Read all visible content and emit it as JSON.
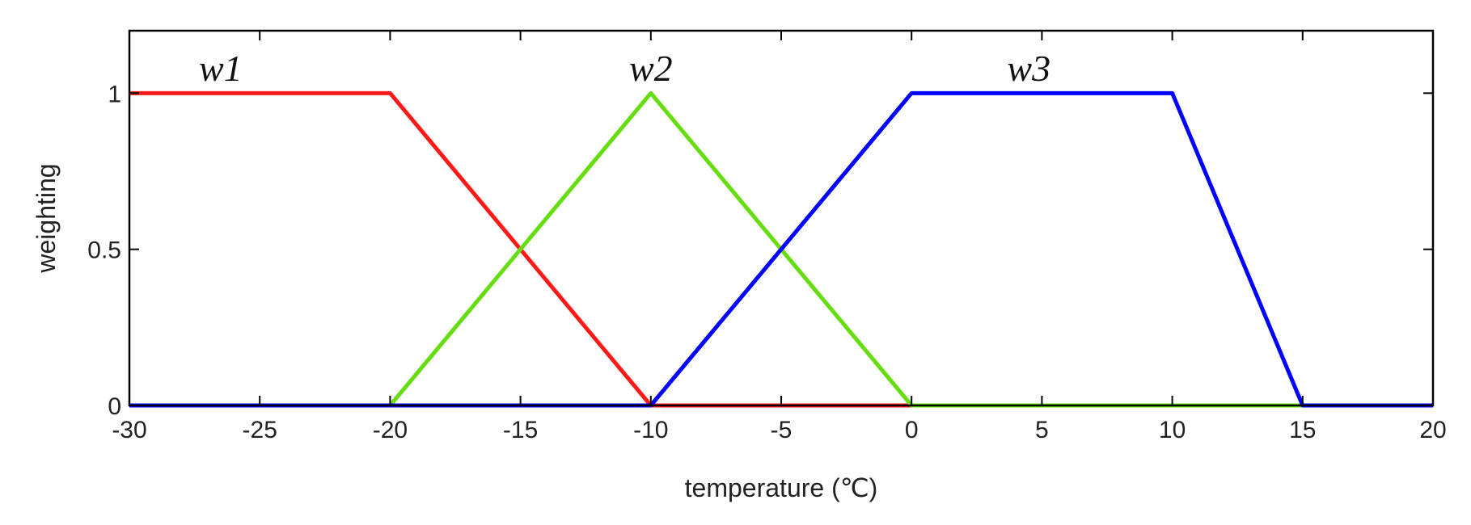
{
  "chart_data": {
    "type": "line",
    "title": "",
    "xlabel": "temperature (℃)",
    "ylabel": "weighting",
    "xlim": [
      -30,
      20
    ],
    "ylim": [
      0,
      1.2
    ],
    "xticks": [
      -30,
      -25,
      -20,
      -15,
      -10,
      -5,
      0,
      5,
      10,
      15,
      20
    ],
    "yticks": [
      0,
      0.5,
      1
    ],
    "xtick_labels": [
      "-30",
      "-25",
      "-20",
      "-15",
      "-10",
      "-5",
      "0",
      "5",
      "10",
      "15",
      "20"
    ],
    "ytick_labels": [
      "0",
      "0.5",
      "1"
    ],
    "grid": false,
    "series": [
      {
        "name": "w1",
        "color": "#ff1a1a",
        "x": [
          -30,
          -20,
          -10,
          0
        ],
        "y": [
          1,
          1,
          0,
          0
        ],
        "label_at": [
          -26.5,
          1.04
        ]
      },
      {
        "name": "w2",
        "color": "#66dd11",
        "x": [
          -30,
          -20,
          -10,
          0,
          15
        ],
        "y": [
          0,
          0,
          1,
          0,
          0
        ],
        "label_at": [
          -10,
          1.04
        ]
      },
      {
        "name": "w3",
        "color": "#0000ff",
        "x": [
          -30,
          -10,
          0,
          10,
          15,
          20
        ],
        "y": [
          0,
          0,
          1,
          1,
          0,
          0
        ],
        "label_at": [
          4.5,
          1.04
        ]
      }
    ]
  }
}
